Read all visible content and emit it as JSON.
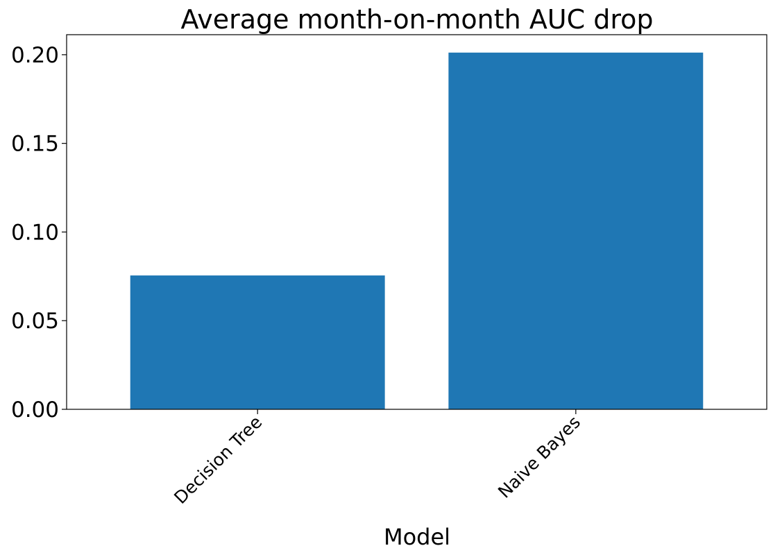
{
  "chart_data": {
    "type": "bar",
    "title": "Average month-on-month AUC drop",
    "xlabel": "Model",
    "ylabel": "",
    "categories": [
      "Decision Tree",
      "Naive Bayes"
    ],
    "values": [
      0.0755,
      0.2012
    ],
    "ylim": [
      0,
      0.2113
    ],
    "yticks": [
      0.0,
      0.05,
      0.1,
      0.15,
      0.2
    ],
    "ytick_labels": [
      "0.00",
      "0.05",
      "0.10",
      "0.15",
      "0.20"
    ],
    "bar_color": "#1f77b4",
    "grid": false,
    "legend": "none"
  }
}
